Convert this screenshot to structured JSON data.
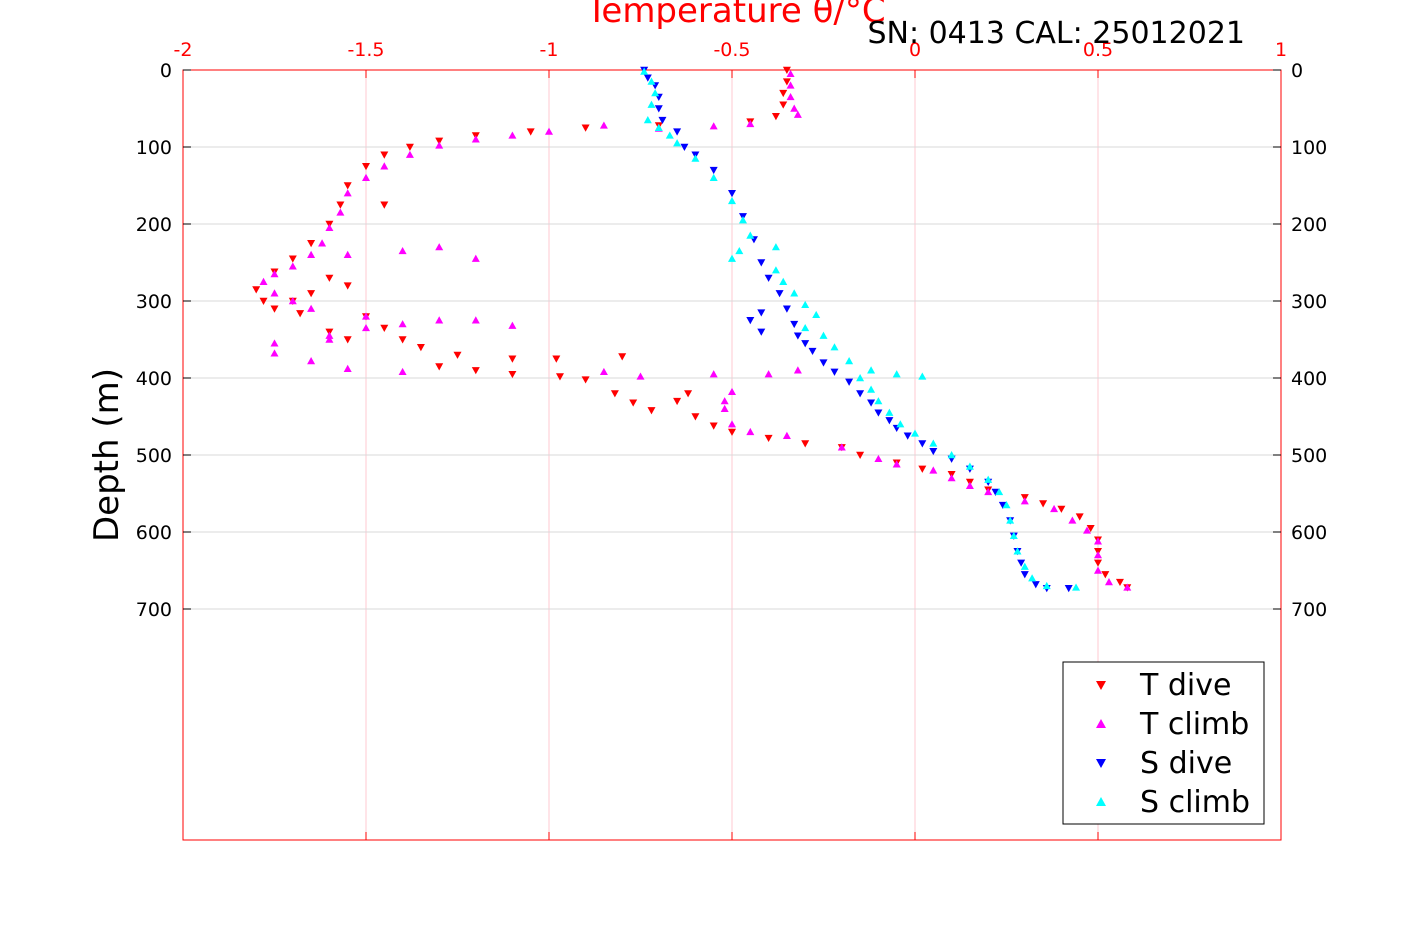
{
  "chart_data": {
    "type": "scatter",
    "xlabel": "Temperature θ/°C",
    "ylabel": "Depth (m)",
    "annotation": "SN: 0413  CAL: 25012021",
    "xlim": [
      -2,
      1
    ],
    "ylim": [
      0,
      1000
    ],
    "y_reversed": true,
    "x_axis_position": "top",
    "x_ticks": [
      "-2",
      "-1.5",
      "-1",
      "-0.5",
      "0",
      "0.5",
      "1"
    ],
    "x_tick_values": [
      -2,
      -1.5,
      -1,
      -0.5,
      0,
      0.5,
      1
    ],
    "y_ticks": [
      "0",
      "100",
      "200",
      "300",
      "400",
      "500",
      "600",
      "700"
    ],
    "y_tick_values": [
      0,
      100,
      200,
      300,
      400,
      500,
      600,
      700
    ],
    "grid": true,
    "legend_position": "bottom-right",
    "series": [
      {
        "name": "T dive",
        "marker": "triangle-down",
        "color": "#ff0000",
        "points": [
          [
            -0.35,
            0
          ],
          [
            -0.35,
            15
          ],
          [
            -0.36,
            30
          ],
          [
            -0.36,
            45
          ],
          [
            -0.38,
            60
          ],
          [
            -0.45,
            67
          ],
          [
            -0.7,
            72
          ],
          [
            -0.9,
            75
          ],
          [
            -1.05,
            80
          ],
          [
            -1.2,
            85
          ],
          [
            -1.3,
            92
          ],
          [
            -1.38,
            100
          ],
          [
            -1.45,
            110
          ],
          [
            -1.5,
            125
          ],
          [
            -1.55,
            150
          ],
          [
            -1.57,
            175
          ],
          [
            -1.6,
            200
          ],
          [
            -1.65,
            225
          ],
          [
            -1.7,
            245
          ],
          [
            -1.75,
            262
          ],
          [
            -1.8,
            285
          ],
          [
            -1.78,
            300
          ],
          [
            -1.75,
            310
          ],
          [
            -1.68,
            316
          ],
          [
            -1.6,
            340
          ],
          [
            -1.55,
            350
          ],
          [
            -1.45,
            335
          ],
          [
            -1.35,
            360
          ],
          [
            -1.3,
            385
          ],
          [
            -1.2,
            390
          ],
          [
            -1.1,
            395
          ],
          [
            -1.1,
            375
          ],
          [
            -1.25,
            370
          ],
          [
            -1.4,
            350
          ],
          [
            -1.5,
            320
          ],
          [
            -1.55,
            280
          ],
          [
            -1.6,
            270
          ],
          [
            -1.65,
            290
          ],
          [
            -1.7,
            300
          ],
          [
            -1.45,
            175
          ],
          [
            -0.98,
            375
          ],
          [
            -0.8,
            372
          ],
          [
            -0.97,
            398
          ],
          [
            -0.9,
            402
          ],
          [
            -0.82,
            420
          ],
          [
            -0.77,
            432
          ],
          [
            -0.72,
            442
          ],
          [
            -0.65,
            430
          ],
          [
            -0.62,
            420
          ],
          [
            -0.6,
            450
          ],
          [
            -0.55,
            462
          ],
          [
            -0.5,
            470
          ],
          [
            -0.4,
            478
          ],
          [
            -0.3,
            485
          ],
          [
            -0.2,
            490
          ],
          [
            -0.15,
            500
          ],
          [
            -0.05,
            510
          ],
          [
            0.02,
            518
          ],
          [
            0.1,
            525
          ],
          [
            0.15,
            535
          ],
          [
            0.2,
            545
          ],
          [
            0.3,
            555
          ],
          [
            0.35,
            563
          ],
          [
            0.4,
            570
          ],
          [
            0.45,
            580
          ],
          [
            0.48,
            595
          ],
          [
            0.5,
            610
          ],
          [
            0.5,
            625
          ],
          [
            0.5,
            640
          ],
          [
            0.52,
            655
          ],
          [
            0.56,
            665
          ],
          [
            0.58,
            672
          ]
        ]
      },
      {
        "name": "T climb",
        "marker": "triangle-up",
        "color": "#ff00ff",
        "points": [
          [
            -0.34,
            5
          ],
          [
            -0.34,
            20
          ],
          [
            -0.34,
            35
          ],
          [
            -0.33,
            50
          ],
          [
            -0.32,
            58
          ],
          [
            -0.45,
            70
          ],
          [
            -0.55,
            73
          ],
          [
            -0.7,
            76
          ],
          [
            -0.85,
            72
          ],
          [
            -1.0,
            80
          ],
          [
            -1.1,
            85
          ],
          [
            -1.2,
            90
          ],
          [
            -1.3,
            98
          ],
          [
            -1.38,
            110
          ],
          [
            -1.45,
            125
          ],
          [
            -1.5,
            140
          ],
          [
            -1.55,
            160
          ],
          [
            -1.57,
            185
          ],
          [
            -1.6,
            205
          ],
          [
            -1.62,
            225
          ],
          [
            -1.65,
            240
          ],
          [
            -1.7,
            255
          ],
          [
            -1.75,
            265
          ],
          [
            -1.78,
            275
          ],
          [
            -1.75,
            290
          ],
          [
            -1.7,
            300
          ],
          [
            -1.65,
            310
          ],
          [
            -1.55,
            240
          ],
          [
            -1.4,
            235
          ],
          [
            -1.3,
            230
          ],
          [
            -1.2,
            245
          ],
          [
            -1.5,
            320
          ],
          [
            -1.4,
            330
          ],
          [
            -1.3,
            325
          ],
          [
            -1.2,
            325
          ],
          [
            -1.1,
            332
          ],
          [
            -1.6,
            345
          ],
          [
            -1.75,
            355
          ],
          [
            -1.75,
            368
          ],
          [
            -1.65,
            378
          ],
          [
            -1.55,
            388
          ],
          [
            -1.4,
            392
          ],
          [
            -1.5,
            335
          ],
          [
            -1.6,
            350
          ],
          [
            -0.85,
            392
          ],
          [
            -0.75,
            398
          ],
          [
            -0.55,
            395
          ],
          [
            -0.5,
            418
          ],
          [
            -0.52,
            430
          ],
          [
            -0.52,
            440
          ],
          [
            -0.5,
            460
          ],
          [
            -0.45,
            470
          ],
          [
            -0.35,
            475
          ],
          [
            -0.32,
            390
          ],
          [
            -0.4,
            395
          ],
          [
            -0.2,
            490
          ],
          [
            -0.1,
            505
          ],
          [
            -0.05,
            512
          ],
          [
            0.05,
            520
          ],
          [
            0.1,
            530
          ],
          [
            0.15,
            540
          ],
          [
            0.2,
            548
          ],
          [
            0.3,
            560
          ],
          [
            0.38,
            570
          ],
          [
            0.43,
            585
          ],
          [
            0.47,
            598
          ],
          [
            0.5,
            612
          ],
          [
            0.5,
            630
          ],
          [
            0.5,
            650
          ],
          [
            0.53,
            665
          ],
          [
            0.58,
            672
          ]
        ]
      },
      {
        "name": "S dive",
        "marker": "triangle-down",
        "color": "#0000ff",
        "points": [
          [
            -0.74,
            0
          ],
          [
            -0.73,
            10
          ],
          [
            -0.71,
            20
          ],
          [
            -0.7,
            35
          ],
          [
            -0.7,
            50
          ],
          [
            -0.69,
            65
          ],
          [
            -0.65,
            80
          ],
          [
            -0.63,
            100
          ],
          [
            -0.6,
            110
          ],
          [
            -0.55,
            130
          ],
          [
            -0.5,
            160
          ],
          [
            -0.47,
            190
          ],
          [
            -0.44,
            220
          ],
          [
            -0.42,
            250
          ],
          [
            -0.4,
            270
          ],
          [
            -0.37,
            290
          ],
          [
            -0.35,
            310
          ],
          [
            -0.33,
            330
          ],
          [
            -0.32,
            345
          ],
          [
            -0.42,
            315
          ],
          [
            -0.45,
            325
          ],
          [
            -0.42,
            340
          ],
          [
            -0.3,
            355
          ],
          [
            -0.28,
            365
          ],
          [
            -0.25,
            380
          ],
          [
            -0.22,
            392
          ],
          [
            -0.18,
            405
          ],
          [
            -0.15,
            420
          ],
          [
            -0.12,
            432
          ],
          [
            -0.1,
            445
          ],
          [
            -0.07,
            455
          ],
          [
            -0.05,
            465
          ],
          [
            -0.02,
            475
          ],
          [
            0.02,
            485
          ],
          [
            0.05,
            495
          ],
          [
            0.1,
            505
          ],
          [
            0.15,
            518
          ],
          [
            0.2,
            535
          ],
          [
            0.22,
            548
          ],
          [
            0.24,
            565
          ],
          [
            0.26,
            585
          ],
          [
            0.27,
            605
          ],
          [
            0.28,
            625
          ],
          [
            0.29,
            640
          ],
          [
            0.3,
            655
          ],
          [
            0.33,
            668
          ],
          [
            0.36,
            673
          ],
          [
            0.42,
            673
          ]
        ]
      },
      {
        "name": "S climb",
        "marker": "triangle-up",
        "color": "#00ffff",
        "points": [
          [
            -0.74,
            2
          ],
          [
            -0.72,
            15
          ],
          [
            -0.71,
            30
          ],
          [
            -0.72,
            45
          ],
          [
            -0.73,
            65
          ],
          [
            -0.7,
            75
          ],
          [
            -0.67,
            85
          ],
          [
            -0.65,
            95
          ],
          [
            -0.6,
            115
          ],
          [
            -0.55,
            140
          ],
          [
            -0.5,
            170
          ],
          [
            -0.47,
            195
          ],
          [
            -0.45,
            215
          ],
          [
            -0.48,
            235
          ],
          [
            -0.5,
            245
          ],
          [
            -0.38,
            230
          ],
          [
            -0.38,
            260
          ],
          [
            -0.36,
            275
          ],
          [
            -0.33,
            290
          ],
          [
            -0.3,
            305
          ],
          [
            -0.27,
            318
          ],
          [
            -0.3,
            335
          ],
          [
            -0.25,
            345
          ],
          [
            -0.22,
            360
          ],
          [
            -0.18,
            378
          ],
          [
            -0.12,
            390
          ],
          [
            -0.05,
            395
          ],
          [
            0.02,
            398
          ],
          [
            -0.15,
            400
          ],
          [
            -0.12,
            415
          ],
          [
            -0.1,
            430
          ],
          [
            -0.07,
            445
          ],
          [
            -0.04,
            460
          ],
          [
            0.0,
            472
          ],
          [
            0.05,
            485
          ],
          [
            0.1,
            500
          ],
          [
            0.15,
            515
          ],
          [
            0.2,
            532
          ],
          [
            0.23,
            548
          ],
          [
            0.25,
            565
          ],
          [
            0.26,
            585
          ],
          [
            0.27,
            605
          ],
          [
            0.28,
            625
          ],
          [
            0.3,
            645
          ],
          [
            0.32,
            660
          ],
          [
            0.36,
            670
          ],
          [
            0.44,
            672
          ]
        ]
      }
    ]
  }
}
